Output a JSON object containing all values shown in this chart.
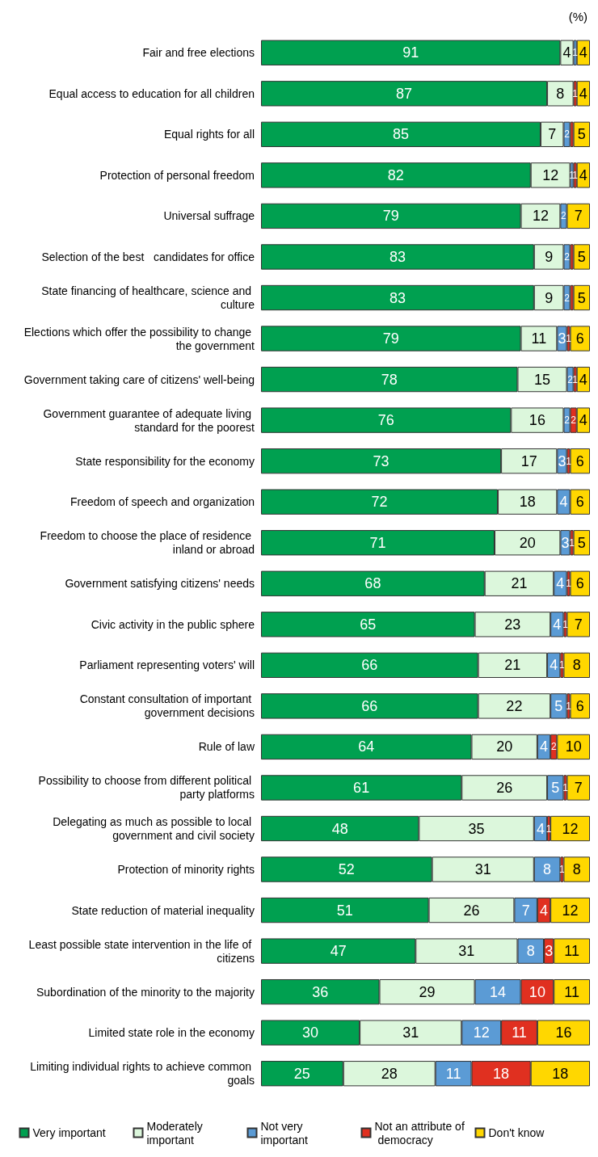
{
  "chart_data": {
    "type": "bar",
    "orientation": "horizontal",
    "stacked": true,
    "legend": "bottom",
    "marker": "square",
    "grid": false,
    "tick_labels": "y",
    "xlim": [
      0,
      100
    ],
    "annotations": [
      "(%)"
    ],
    "categories": [
      "Fair and free elections",
      "Equal access to education for all children",
      "Equal rights for all",
      "Protection of personal freedom",
      "Universal suffrage",
      "Selection of the best   candidates for office",
      "State financing of healthcare, science and culture",
      "Elections which offer the possibility to change the government",
      "Government taking care of citizens' well-being",
      "Government guarantee of adequate living standard for the poorest",
      "State responsibility for the economy",
      "Freedom of speech and organization",
      "Freedom to choose the place of residence inland or abroad",
      "Government satisfying citizens' needs",
      "Civic activity in the public sphere",
      "Parliament representing voters' will",
      "Constant consultation of important government decisions",
      "Rule of law",
      "Possibility to choose from different political party platforms",
      "Delegating as much as possible to local government and civil society",
      "Protection of minority rights",
      "State reduction of material inequality",
      "Least possible state intervention in the life of citizens",
      "Subordination of the minority to the majority",
      "Limited state role in the economy",
      "Limiting individual rights to achieve common goals"
    ],
    "series": [
      {
        "name": "Very important",
        "color": "#00a050",
        "values": [
          91,
          87,
          85,
          82,
          79,
          83,
          83,
          79,
          78,
          76,
          73,
          72,
          71,
          68,
          65,
          66,
          66,
          64,
          61,
          48,
          52,
          51,
          47,
          36,
          30,
          25
        ],
        "value_labels": [
          "91",
          "87",
          "85",
          "82",
          "79",
          "83",
          "83",
          "79",
          "78",
          "76",
          "73",
          "72",
          "71",
          "68",
          "65",
          "66",
          "66",
          "64",
          "61",
          "48",
          "52",
          "51",
          "47",
          "36",
          "30",
          "25"
        ]
      },
      {
        "name": "Moderately important",
        "color": "#dcf7dc",
        "values": [
          4,
          8,
          7,
          12,
          12,
          9,
          9,
          11,
          15,
          16,
          17,
          18,
          20,
          21,
          23,
          21,
          22,
          20,
          26,
          35,
          31,
          26,
          31,
          29,
          31,
          28
        ],
        "value_labels": [
          "4",
          "8",
          "7",
          "12",
          "12",
          "9",
          "9",
          "11",
          "15",
          "16",
          "17",
          "18",
          "20",
          "21",
          "23",
          "21",
          "22",
          "20",
          "26",
          "35",
          "31",
          "26",
          "31",
          "29",
          "31",
          "28"
        ]
      },
      {
        "name": "Not very important",
        "color": "#5b9bd5",
        "values": [
          1,
          null,
          2,
          1,
          2,
          2,
          2,
          3,
          2,
          2,
          3,
          4,
          3,
          4,
          4,
          4,
          5,
          4,
          5,
          4,
          8,
          7,
          8,
          14,
          12,
          11
        ],
        "value_labels": [
          "1",
          null,
          "2",
          "1",
          "2",
          "2",
          "2",
          "3",
          "2",
          "2",
          "3",
          "4",
          "3",
          "4",
          "4",
          "4",
          "5",
          "4",
          "5",
          "4",
          "8",
          "7",
          "8",
          "14",
          "12",
          "11"
        ]
      },
      {
        "name": "Not an attribute of democracy",
        "color": "#e03020",
        "values": [
          null,
          1,
          1,
          1,
          null,
          1,
          1,
          1,
          1,
          2,
          1,
          null,
          1,
          1,
          1,
          1,
          1,
          2,
          1,
          1,
          1,
          4,
          3,
          10,
          11,
          18
        ],
        "value_labels": [
          null,
          "1",
          null,
          "1",
          null,
          null,
          null,
          "1",
          "1",
          "2",
          "1",
          null,
          "1",
          "1",
          "1",
          "1",
          "1",
          "2",
          "1",
          "1",
          "1",
          "4",
          "3",
          "10",
          "11",
          "18"
        ]
      },
      {
        "name": "Don't know",
        "color": "#ffd700",
        "values": [
          4,
          4,
          5,
          4,
          7,
          5,
          5,
          6,
          4,
          4,
          6,
          6,
          5,
          6,
          7,
          8,
          6,
          10,
          7,
          12,
          8,
          12,
          11,
          11,
          16,
          18
        ],
        "value_labels": [
          "4",
          "4",
          "5",
          "4",
          "7",
          "5",
          "5",
          "6",
          "4",
          "4",
          "6",
          "6",
          "5",
          "6",
          "7",
          "8",
          "6",
          "10",
          "7",
          "12",
          "8",
          "12",
          "11",
          "11",
          "16",
          "18"
        ]
      }
    ]
  }
}
